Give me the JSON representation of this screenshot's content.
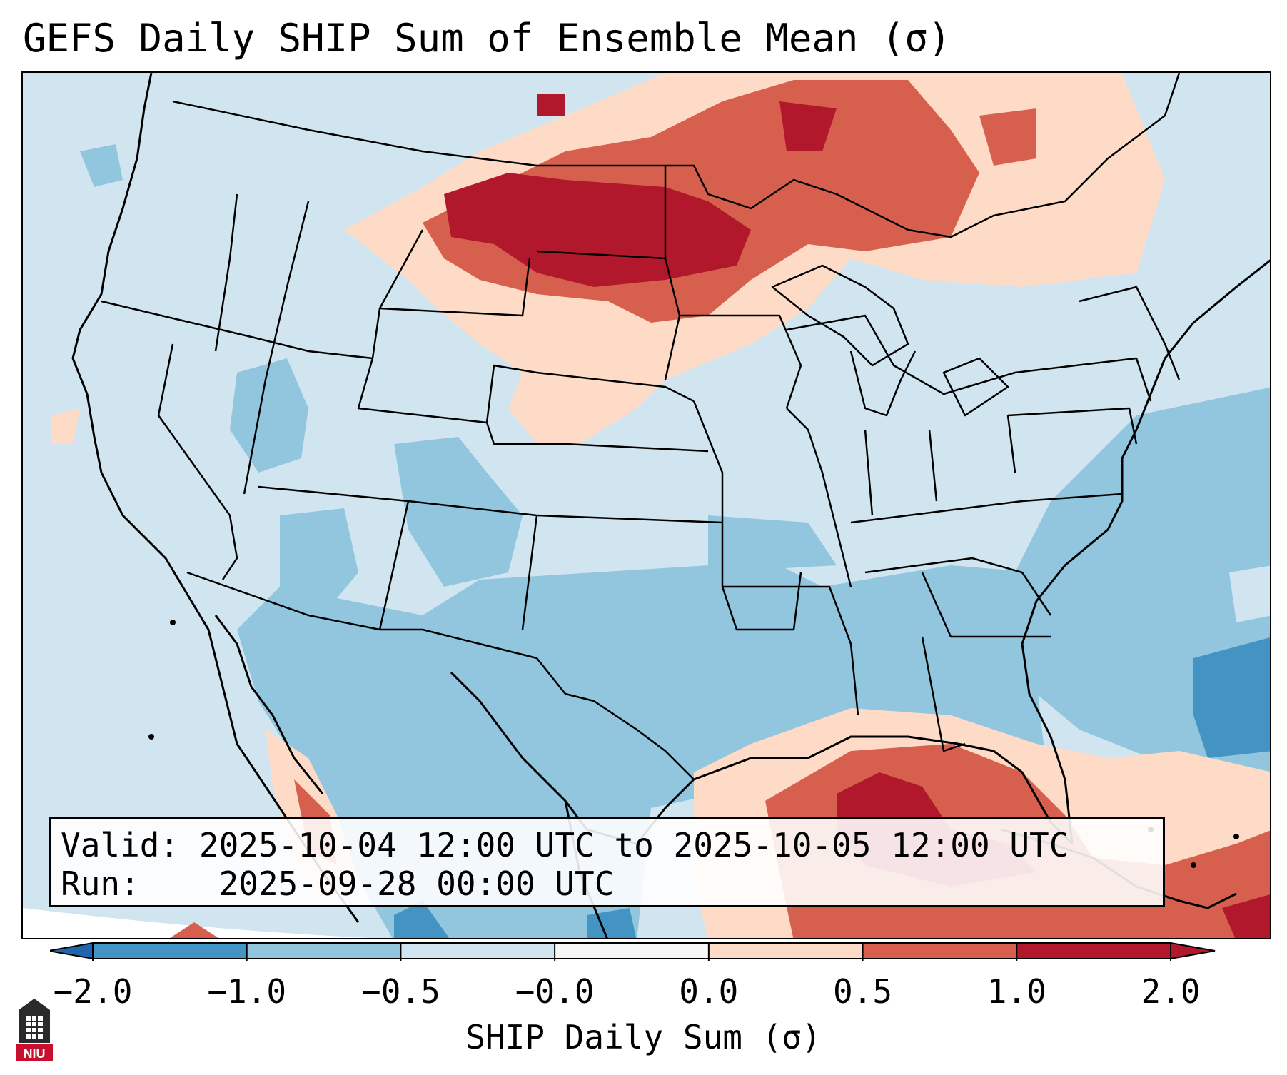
{
  "title": "GEFS Daily SHIP Sum of Ensemble Mean (σ)",
  "info": {
    "valid_label": "Valid:",
    "valid_value": "2025-10-04 12:00 UTC to 2025-10-05 12:00 UTC",
    "run_label": "Run:",
    "run_value": "2025-09-28 00:00 UTC"
  },
  "colorbar": {
    "label": "SHIP Daily Sum (σ)",
    "ticks": [
      "−2.0",
      "−1.0",
      "−0.5",
      "−0.0",
      "0.0",
      "0.5",
      "1.0",
      "2.0"
    ],
    "colors": [
      "#4393c3",
      "#92c5de",
      "#d1e5f0",
      "#f7f7f7",
      "#fddbc7",
      "#d6604d",
      "#b2182b"
    ],
    "extend_low_color": "#2166ac",
    "extend_high_color": "#b2182b"
  },
  "map": {
    "projection": "Lambert Conformal",
    "region": "CONUS",
    "anomaly_areas": [
      {
        "name": "Northern Plains / Upper Midwest",
        "sigma": 2.0
      },
      {
        "name": "Gulf of Mexico / Florida",
        "sigma": 2.0
      },
      {
        "name": "Southern Plains / Southeast",
        "sigma": -0.75
      },
      {
        "name": "Western Atlantic",
        "sigma": -1.0
      }
    ]
  },
  "logo": {
    "text": "NIU",
    "color": "#c8102e"
  }
}
